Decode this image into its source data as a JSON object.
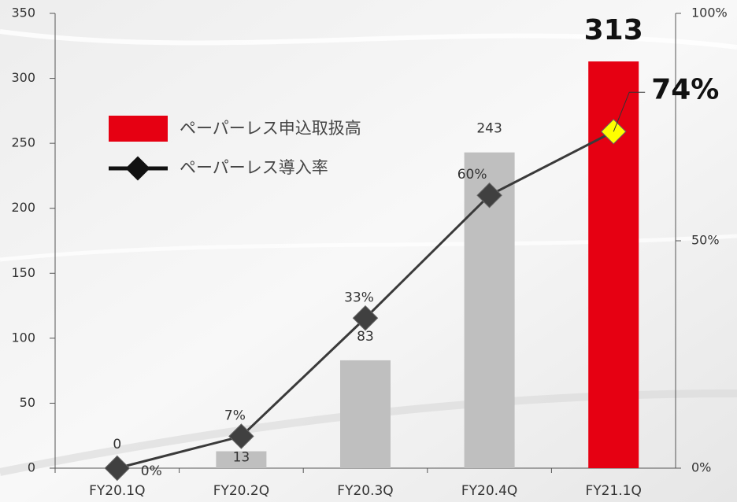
{
  "chart_data": {
    "type": "bar_line",
    "categories": [
      "FY20.1Q",
      "FY20.2Q",
      "FY20.3Q",
      "FY20.4Q",
      "FY21.1Q"
    ],
    "series": [
      {
        "name": "ペーパーレス申込取扱高",
        "type": "bar",
        "color": "#e60012",
        "colors": [
          "#bfbfbf",
          "#bfbfbf",
          "#bfbfbf",
          "#bfbfbf",
          "#e60012"
        ],
        "values": [
          0,
          13,
          83,
          243,
          313
        ]
      },
      {
        "name": "ペーパーレス導入率",
        "type": "line",
        "axis": "y2",
        "color": "#3a3a3a",
        "marker_colors": [
          "#404040",
          "#404040",
          "#404040",
          "#404040",
          "#ffff00"
        ],
        "values": [
          0,
          7,
          33,
          60,
          74
        ],
        "value_labels": [
          "0%",
          "7%",
          "33%",
          "60%",
          "74%"
        ]
      }
    ],
    "ylim": [
      0,
      350
    ],
    "yticks": [
      0,
      50,
      100,
      150,
      200,
      250,
      300,
      350
    ],
    "y2lim": [
      0,
      100
    ],
    "y2ticks": [
      {
        "value": 0,
        "label": "0%"
      },
      {
        "value": 50,
        "label": "50%"
      },
      {
        "value": 100,
        "label": "100%"
      }
    ],
    "grid": false,
    "legend": "upper left"
  }
}
